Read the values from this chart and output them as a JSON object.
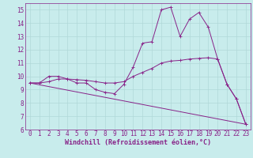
{
  "xlabel": "Windchill (Refroidissement éolien,°C)",
  "ylabel": "",
  "background_color": "#c8ecec",
  "grid_color": "#b0d8d8",
  "line_color": "#882288",
  "xlim": [
    -0.5,
    23.5
  ],
  "ylim": [
    6,
    15.5
  ],
  "yticks": [
    6,
    7,
    8,
    9,
    10,
    11,
    12,
    13,
    14,
    15
  ],
  "xticks": [
    0,
    1,
    2,
    3,
    4,
    5,
    6,
    7,
    8,
    9,
    10,
    11,
    12,
    13,
    14,
    15,
    16,
    17,
    18,
    19,
    20,
    21,
    22,
    23
  ],
  "line1_x": [
    0,
    1,
    2,
    3,
    4,
    5,
    6,
    7,
    8,
    9,
    10,
    11,
    12,
    13,
    14,
    15,
    16,
    17,
    18,
    19,
    20,
    21,
    22,
    23
  ],
  "line1_y": [
    9.5,
    9.5,
    10.0,
    10.0,
    9.8,
    9.5,
    9.5,
    9.0,
    8.8,
    8.7,
    9.4,
    10.7,
    12.5,
    12.6,
    15.0,
    15.2,
    13.0,
    14.3,
    14.8,
    13.7,
    11.3,
    9.4,
    8.3,
    6.4
  ],
  "line2_x": [
    0,
    1,
    2,
    3,
    4,
    5,
    6,
    7,
    8,
    9,
    10,
    11,
    12,
    13,
    14,
    15,
    16,
    17,
    18,
    19,
    20,
    21,
    22,
    23
  ],
  "line2_y": [
    9.5,
    9.5,
    9.6,
    9.8,
    9.8,
    9.75,
    9.7,
    9.6,
    9.5,
    9.5,
    9.6,
    10.0,
    10.3,
    10.6,
    11.0,
    11.15,
    11.2,
    11.3,
    11.35,
    11.4,
    11.3,
    9.4,
    8.3,
    6.4
  ],
  "line3_x": [
    0,
    23
  ],
  "line3_y": [
    9.5,
    6.4
  ],
  "ticklabel_fontsize": 5.5,
  "xlabel_fontsize": 6.0
}
